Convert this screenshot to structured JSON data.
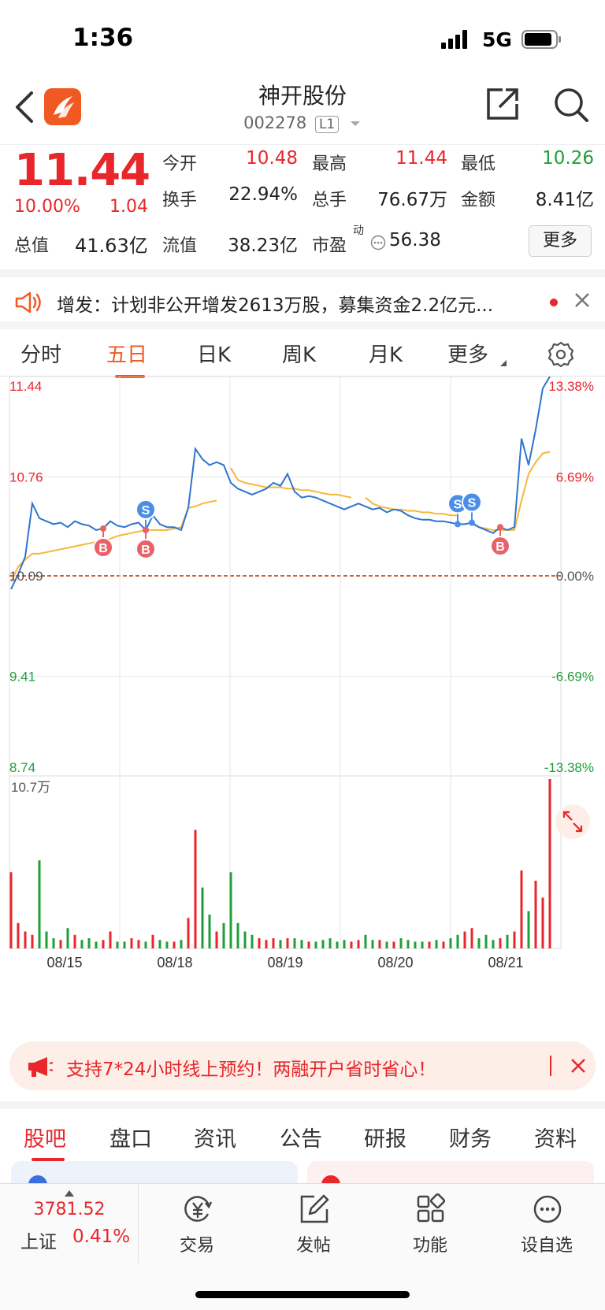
{
  "status_bar": {
    "time": "1:36",
    "network": "5G"
  },
  "header": {
    "name": "神开股份",
    "code": "002278",
    "level": "L1"
  },
  "quote": {
    "price": "11.44",
    "change_pct": "10.00%",
    "change_amt": "1.04",
    "open_label": "今开",
    "open": "10.48",
    "high_label": "最高",
    "high": "11.44",
    "low_label": "最低",
    "low": "10.26",
    "turnover_label": "换手",
    "turnover": "22.94%",
    "volume_label": "总手",
    "volume": "76.67万",
    "amount_label": "金额",
    "amount": "8.41亿",
    "mktcap_label": "总值",
    "mktcap": "41.63亿",
    "float_label": "流值",
    "float": "38.23亿",
    "pe_label": "市盈",
    "pe_sup": "动",
    "pe": "56.38",
    "more": "更多"
  },
  "notice": {
    "text": "增发：计划非公开增发2613万股，募集资金2.2亿元..."
  },
  "chart_tabs": [
    "分时",
    "五日",
    "日K",
    "周K",
    "月K",
    "更多"
  ],
  "chart_data": {
    "type": "line",
    "y_left_ticks": [
      "11.44",
      "10.76",
      "10.09",
      "9.41",
      "8.74"
    ],
    "y_right_ticks": [
      "13.38%",
      "6.69%",
      "0.00%",
      "-6.69%",
      "-13.38%"
    ],
    "ylim": [
      8.74,
      11.44
    ],
    "prev_close": 10.09,
    "x_labels": [
      "08/15",
      "08/18",
      "08/19",
      "08/20",
      "08/21"
    ],
    "volume_label": "10.7万",
    "price_series": [
      10.0,
      10.1,
      10.22,
      10.58,
      10.48,
      10.46,
      10.44,
      10.45,
      10.42,
      10.46,
      10.44,
      10.43,
      10.4,
      10.41,
      10.46,
      10.43,
      10.42,
      10.44,
      10.45,
      10.4,
      10.5,
      10.44,
      10.42,
      10.42,
      10.4,
      10.55,
      10.95,
      10.88,
      10.84,
      10.86,
      10.84,
      10.72,
      10.68,
      10.66,
      10.64,
      10.66,
      10.68,
      10.72,
      10.7,
      10.78,
      10.66,
      10.62,
      10.63,
      10.62,
      10.6,
      10.58,
      10.56,
      10.54,
      10.56,
      10.58,
      10.56,
      10.54,
      10.55,
      10.52,
      10.54,
      10.53,
      10.5,
      10.48,
      10.47,
      10.47,
      10.46,
      10.46,
      10.45,
      10.44,
      10.44,
      10.45,
      10.42,
      10.4,
      10.38,
      10.42,
      10.4,
      10.42,
      11.02,
      10.84,
      11.08,
      11.36,
      11.44
    ],
    "avg_series": [
      10.05,
      10.15,
      10.2,
      10.24,
      10.24,
      10.25,
      10.26,
      10.27,
      10.28,
      10.29,
      10.3,
      10.31,
      10.32,
      10.33,
      10.34,
      10.36,
      10.37,
      10.38,
      10.39,
      10.4,
      10.4,
      10.4,
      10.4,
      10.41,
      10.42,
      10.55,
      10.56,
      10.58,
      10.59,
      10.6,
      null,
      10.82,
      10.74,
      10.72,
      10.71,
      10.7,
      10.69,
      10.69,
      10.69,
      10.68,
      10.68,
      10.67,
      10.67,
      10.66,
      10.65,
      10.64,
      10.64,
      10.63,
      10.62,
      null,
      10.62,
      10.58,
      10.56,
      10.55,
      10.54,
      10.54,
      10.53,
      10.53,
      10.52,
      10.52,
      10.51,
      10.51,
      10.5,
      10.5,
      null,
      10.44,
      10.42,
      10.41,
      10.4,
      10.4,
      10.4,
      10.4,
      10.6,
      10.78,
      10.86,
      10.92,
      10.93
    ],
    "volume_series": [
      0.45,
      0.15,
      0.1,
      0.08,
      0.52,
      0.1,
      0.06,
      0.05,
      0.12,
      0.08,
      0.05,
      0.06,
      0.04,
      0.05,
      0.1,
      0.04,
      0.04,
      0.06,
      0.05,
      0.04,
      0.08,
      0.05,
      0.04,
      0.04,
      0.05,
      0.18,
      0.7,
      0.36,
      0.2,
      0.1,
      0.15,
      0.45,
      0.15,
      0.1,
      0.08,
      0.06,
      0.05,
      0.06,
      0.05,
      0.06,
      0.06,
      0.05,
      0.04,
      0.04,
      0.05,
      0.06,
      0.04,
      0.05,
      0.04,
      0.05,
      0.08,
      0.05,
      0.05,
      0.04,
      0.04,
      0.06,
      0.05,
      0.04,
      0.04,
      0.04,
      0.05,
      0.04,
      0.06,
      0.08,
      0.1,
      0.12,
      0.06,
      0.08,
      0.05,
      0.06,
      0.08,
      0.1,
      0.46,
      0.22,
      0.4,
      0.3,
      1.0
    ],
    "markers": [
      {
        "type": "B",
        "index": 13
      },
      {
        "type": "S",
        "index": 19
      },
      {
        "type": "B",
        "index": 19
      },
      {
        "type": "S",
        "index": 63
      },
      {
        "type": "S",
        "index": 65
      },
      {
        "type": "B",
        "index": 69
      }
    ]
  },
  "promo": {
    "text": "支持7*24小时线上预约！两融开户省时省心！"
  },
  "info_tabs": [
    "股吧",
    "盘口",
    "资讯",
    "公告",
    "研报",
    "财务",
    "资料"
  ],
  "bottom_bar": {
    "index_value": "3781.52",
    "index_name": "上证",
    "index_pct": "0.41%",
    "nav": [
      "交易",
      "发帖",
      "功能",
      "设自选"
    ]
  }
}
